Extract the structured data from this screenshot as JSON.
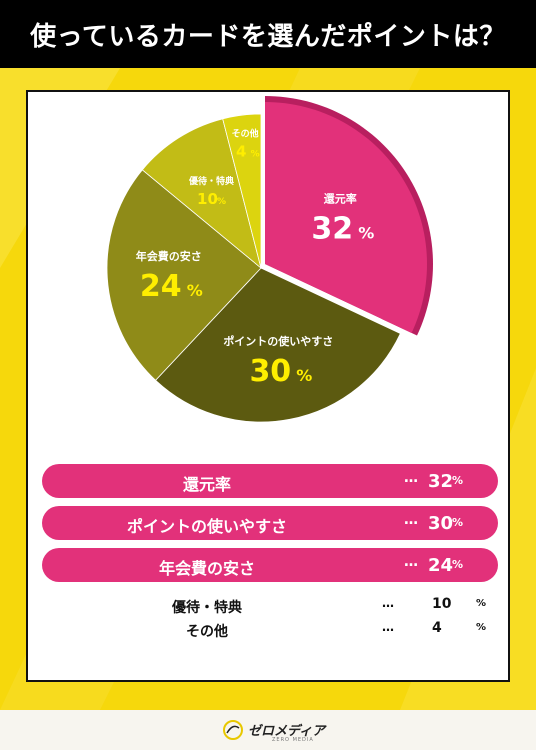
{
  "title": "使っているカードを選んだポイントは？",
  "chart_data": {
    "type": "pie",
    "slices": [
      {
        "label": "還元率",
        "value": 32,
        "color": "#e2317a",
        "dark": "#b81f5f"
      },
      {
        "label": "ポイントの使いやすさ",
        "value": 30,
        "color": "#5c5a10"
      },
      {
        "label": "年会費の安さ",
        "value": 24,
        "color": "#8f8b18"
      },
      {
        "label": "優待・特典",
        "value": 10,
        "color": "#c2bc16"
      },
      {
        "label": "その他",
        "value": 4,
        "color": "#dcd40f"
      }
    ],
    "unit": "%"
  },
  "ranking": [
    {
      "label": "還元率",
      "dots": "…",
      "value": "32",
      "unit": "%"
    },
    {
      "label": "ポイントの使いやすさ",
      "dots": "…",
      "value": "30",
      "unit": "%"
    },
    {
      "label": "年会費の安さ",
      "dots": "…",
      "value": "24",
      "unit": "%"
    },
    {
      "label": "優待・特典",
      "dots": "…",
      "value": "10",
      "unit": "%"
    },
    {
      "label": "その他",
      "dots": "…",
      "value": "4",
      "unit": "%"
    }
  ],
  "footer": {
    "brand": "ゼロメディア",
    "sub": "ZERO MEDIA"
  }
}
